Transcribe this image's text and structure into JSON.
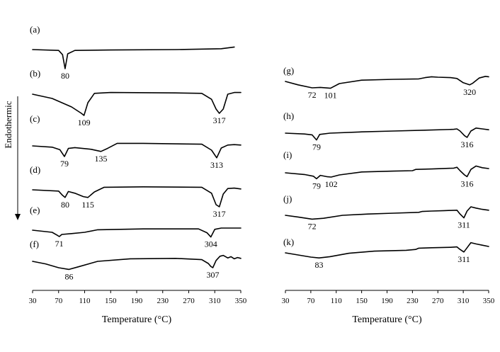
{
  "chart_data": [
    {
      "type": "line",
      "xlabel": "Temperature (°C)",
      "ylabel": "",
      "xlim": [
        30,
        350
      ],
      "xticks": [
        30,
        70,
        110,
        150,
        190,
        230,
        270,
        310,
        350
      ],
      "side_label": "Endothermic",
      "series": [
        {
          "name": "(a)",
          "peaks": [
            80
          ],
          "x": [
            30,
            70,
            76,
            80,
            84,
            95,
            150,
            250,
            320,
            340
          ],
          "y": [
            0,
            -0.2,
            -1.2,
            -4.5,
            -1.0,
            -0.2,
            -0.1,
            0.0,
            0.2,
            0.6
          ]
        },
        {
          "name": "(b)",
          "peaks": [
            109,
            317
          ],
          "x": [
            30,
            60,
            90,
            105,
            109,
            115,
            125,
            150,
            250,
            290,
            305,
            312,
            317,
            323,
            330,
            340,
            350
          ],
          "y": [
            0,
            -1.0,
            -3.0,
            -4.5,
            -5.0,
            -2.0,
            0.2,
            0.4,
            0.3,
            0.2,
            -1.2,
            -3.5,
            -4.5,
            -3.5,
            0.0,
            0.4,
            0.4
          ]
        },
        {
          "name": "(c)",
          "peaks": [
            79,
            135,
            313
          ],
          "x": [
            30,
            60,
            72,
            79,
            85,
            95,
            120,
            135,
            145,
            160,
            200,
            290,
            305,
            313,
            320,
            330,
            340,
            350
          ],
          "y": [
            0,
            -0.3,
            -0.9,
            -2.5,
            -0.6,
            -0.4,
            -0.8,
            -1.3,
            -0.6,
            0.6,
            0.6,
            0.4,
            -1.0,
            -2.8,
            -0.5,
            0.2,
            0.3,
            0.2
          ]
        },
        {
          "name": "(d)",
          "peaks": [
            80,
            115,
            317
          ],
          "x": [
            30,
            70,
            76,
            80,
            85,
            95,
            108,
            115,
            125,
            140,
            200,
            290,
            305,
            312,
            317,
            323,
            330,
            340,
            350
          ],
          "y": [
            0,
            -0.3,
            -1.3,
            -1.8,
            -0.4,
            -0.8,
            -1.6,
            -1.8,
            -0.5,
            0.6,
            0.7,
            0.6,
            -0.8,
            -3.5,
            -4.0,
            -1.0,
            0.3,
            0.4,
            0.2
          ]
        },
        {
          "name": "(e)",
          "peaks": [
            71,
            304
          ],
          "x": [
            30,
            60,
            68,
            71,
            75,
            90,
            110,
            130,
            200,
            285,
            298,
            304,
            310,
            320,
            350
          ],
          "y": [
            0,
            -0.5,
            -1.2,
            -1.5,
            -1.0,
            -0.8,
            -0.5,
            0.1,
            0.3,
            0.3,
            -0.6,
            -1.6,
            0.2,
            0.5,
            0.5
          ]
        },
        {
          "name": "(f)",
          "peaks": [
            86,
            307
          ],
          "x": [
            30,
            50,
            70,
            86,
            100,
            130,
            180,
            250,
            290,
            300,
            304,
            307,
            312,
            318,
            323,
            330,
            335,
            340,
            345,
            350
          ],
          "y": [
            0,
            -0.6,
            -1.5,
            -1.9,
            -1.3,
            0.0,
            0.6,
            0.7,
            0.4,
            -0.5,
            -1.2,
            -1.5,
            0.2,
            1.2,
            1.4,
            0.8,
            1.1,
            0.6,
            0.9,
            0.7
          ]
        }
      ]
    },
    {
      "type": "line",
      "xlabel": "Temperature (°C)",
      "ylabel": "",
      "xlim": [
        30,
        350
      ],
      "xticks": [
        30,
        70,
        110,
        150,
        190,
        230,
        270,
        310,
        350
      ],
      "series": [
        {
          "name": "(g)",
          "peaks": [
            72,
            101,
            320
          ],
          "x": [
            30,
            50,
            72,
            85,
            101,
            115,
            150,
            200,
            240,
            250,
            260,
            270,
            290,
            300,
            310,
            320,
            325,
            335,
            345,
            350
          ],
          "y": [
            0,
            -0.8,
            -1.5,
            -1.4,
            -1.6,
            -0.5,
            0.3,
            0.5,
            0.6,
            0.9,
            1.1,
            1.0,
            0.9,
            0.7,
            -0.3,
            -0.8,
            -0.4,
            0.8,
            1.2,
            1.1
          ]
        },
        {
          "name": "(h)",
          "peaks": [
            79,
            316
          ],
          "x": [
            30,
            60,
            72,
            79,
            84,
            100,
            150,
            200,
            250,
            295,
            300,
            305,
            312,
            316,
            322,
            330,
            340,
            350
          ],
          "y": [
            0,
            -0.2,
            -0.4,
            -1.6,
            -0.3,
            0.0,
            0.3,
            0.5,
            0.7,
            0.9,
            1.0,
            0.5,
            -0.6,
            -1.0,
            0.5,
            1.2,
            1.0,
            0.8
          ]
        },
        {
          "name": "(i)",
          "peaks": [
            79,
            102,
            316
          ],
          "x": [
            30,
            60,
            74,
            79,
            85,
            95,
            102,
            115,
            150,
            200,
            230,
            235,
            260,
            295,
            300,
            305,
            312,
            316,
            322,
            330,
            340,
            350
          ],
          "y": [
            0,
            -0.4,
            -0.8,
            -1.4,
            -0.6,
            -0.9,
            -1.0,
            -0.5,
            0.2,
            0.4,
            0.5,
            0.8,
            0.9,
            1.1,
            1.3,
            0.5,
            -0.5,
            -0.9,
            0.8,
            1.6,
            1.2,
            1.0
          ]
        },
        {
          "name": "(j)",
          "peaks": [
            72,
            311
          ],
          "x": [
            30,
            50,
            72,
            90,
            120,
            160,
            200,
            240,
            245,
            260,
            280,
            300,
            305,
            311,
            316,
            322,
            330,
            340,
            350
          ],
          "y": [
            0,
            -0.4,
            -0.9,
            -0.7,
            0.0,
            0.3,
            0.5,
            0.7,
            0.9,
            1.0,
            1.1,
            1.2,
            0.3,
            -0.6,
            1.0,
            2.0,
            1.7,
            1.4,
            1.2
          ]
        },
        {
          "name": "(k)",
          "peaks": [
            83,
            311
          ],
          "x": [
            30,
            50,
            70,
            83,
            100,
            130,
            170,
            220,
            235,
            240,
            260,
            290,
            300,
            305,
            311,
            316,
            322,
            330,
            340,
            350
          ],
          "y": [
            0,
            -0.5,
            -1.0,
            -1.2,
            -0.9,
            -0.1,
            0.4,
            0.6,
            0.8,
            1.1,
            1.2,
            1.3,
            1.4,
            0.8,
            0.2,
            1.2,
            2.4,
            2.1,
            1.8,
            1.5
          ]
        }
      ]
    }
  ]
}
